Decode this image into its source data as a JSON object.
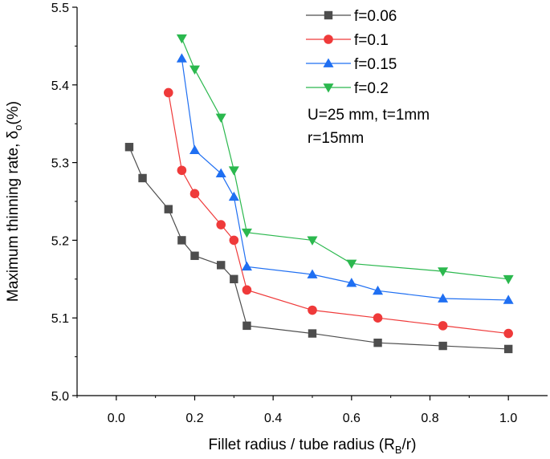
{
  "chart_data": {
    "type": "line",
    "xlabel": "Fillet radius / tube radius (R",
    "xlabel_sub": "B",
    "xlabel_tail": "/r)",
    "ylabel": "Maximum thinning rate, δ",
    "ylabel_sub": "o",
    "ylabel_tail": "(%)",
    "xlim": [
      -0.1,
      1.1
    ],
    "ylim": [
      5.0,
      5.5
    ],
    "xticks": [
      0.0,
      0.2,
      0.4,
      0.6,
      0.8,
      1.0
    ],
    "xtick_labels": [
      "0.0",
      "0.2",
      "0.4",
      "0.6",
      "0.8",
      "1.0"
    ],
    "yticks": [
      5.0,
      5.1,
      5.2,
      5.3,
      5.4,
      5.5
    ],
    "ytick_labels": [
      "5.0",
      "5.1",
      "5.2",
      "5.3",
      "5.4",
      "5.5"
    ],
    "grid": false,
    "legend_position": "top-right",
    "annotations": [
      "U=25 mm, t=1mm",
      " r=15mm"
    ],
    "series": [
      {
        "name": "f=0.06",
        "color": "#4d4d4d",
        "marker": "square",
        "x": [
          0.033,
          0.067,
          0.133,
          0.167,
          0.2,
          0.267,
          0.3,
          0.333,
          0.5,
          0.667,
          0.833,
          1.0
        ],
        "y": [
          5.32,
          5.28,
          5.24,
          5.2,
          5.18,
          5.168,
          5.15,
          5.09,
          5.08,
          5.068,
          5.064,
          5.06
        ]
      },
      {
        "name": "f=0.1",
        "color": "#ef3a3a",
        "marker": "circle",
        "x": [
          0.133,
          0.167,
          0.2,
          0.267,
          0.3,
          0.333,
          0.5,
          0.667,
          0.833,
          1.0
        ],
        "y": [
          5.39,
          5.29,
          5.26,
          5.22,
          5.2,
          5.136,
          5.11,
          5.1,
          5.09,
          5.08
        ]
      },
      {
        "name": "f=0.15",
        "color": "#1f6ff2",
        "marker": "triangle-up",
        "x": [
          0.167,
          0.2,
          0.267,
          0.3,
          0.333,
          0.5,
          0.6,
          0.667,
          0.833,
          1.0
        ],
        "y": [
          5.434,
          5.316,
          5.286,
          5.256,
          5.166,
          5.156,
          5.145,
          5.135,
          5.125,
          5.123
        ]
      },
      {
        "name": "f=0.2",
        "color": "#2bb84e",
        "marker": "triangle-down",
        "x": [
          0.167,
          0.2,
          0.267,
          0.3,
          0.333,
          0.5,
          0.6,
          0.833,
          1.0
        ],
        "y": [
          5.46,
          5.42,
          5.358,
          5.29,
          5.21,
          5.2,
          5.17,
          5.16,
          5.15
        ]
      }
    ]
  }
}
